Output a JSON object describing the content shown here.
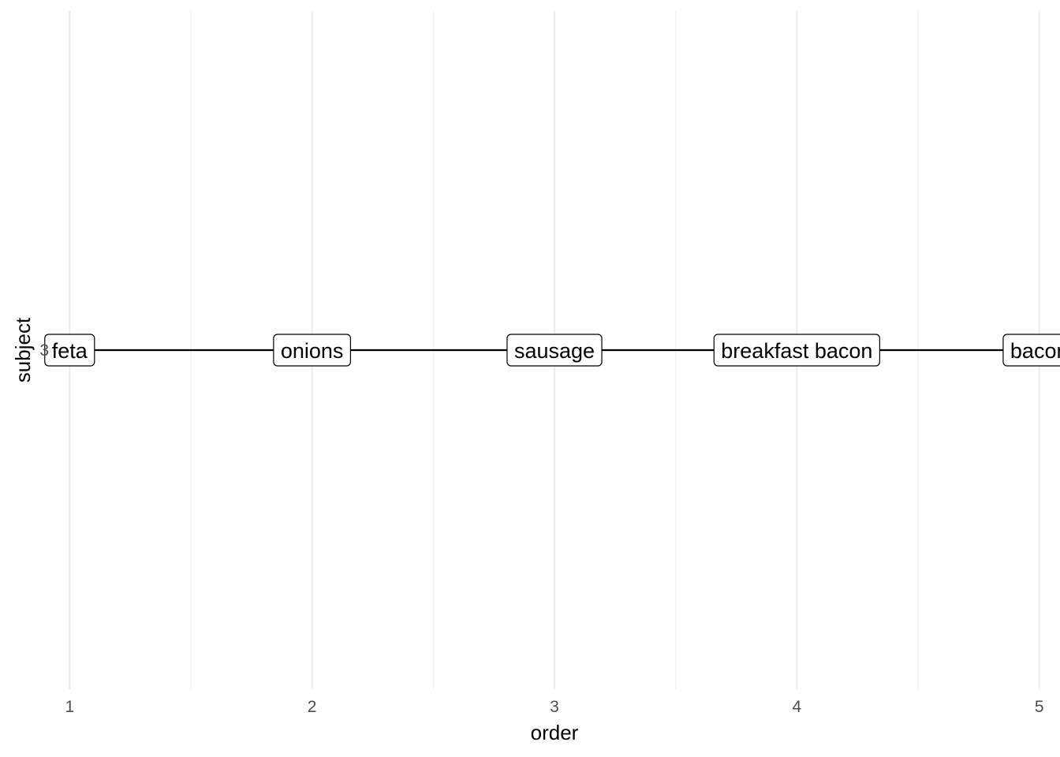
{
  "chart_data": {
    "type": "line",
    "xlabel": "order",
    "ylabel": "subject",
    "xlim": [
      0.96,
      5.04
    ],
    "x_ticks": [
      1,
      2,
      3,
      4,
      5
    ],
    "y_categories": [
      "3"
    ],
    "grid": true,
    "series": [
      {
        "subject": "3",
        "points": [
          {
            "x": 1,
            "label": "feta"
          },
          {
            "x": 2,
            "label": "onions"
          },
          {
            "x": 3,
            "label": "sausage"
          },
          {
            "x": 4,
            "label": "breakfast bacon"
          },
          {
            "x": 5,
            "label": "bacon"
          }
        ]
      }
    ]
  }
}
